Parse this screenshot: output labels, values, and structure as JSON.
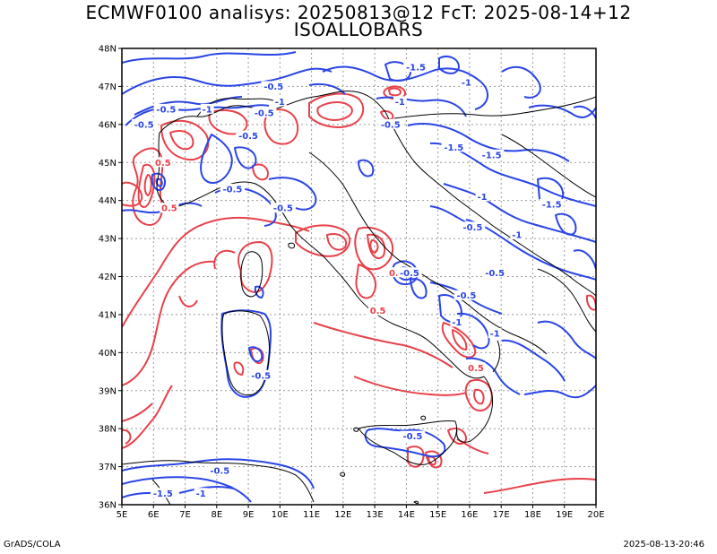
{
  "header": {
    "line1": "ECMWF0100 analisys: 20250813@12 FcT: 2025-08-14+12",
    "line2": "ISOALLOBARS"
  },
  "footer": {
    "left": "GrADS/COLA",
    "right": "2025-08-13-20:46"
  },
  "map": {
    "lon_range": [
      5,
      20
    ],
    "lat_range": [
      36,
      48
    ],
    "lon_ticks": [
      "5E",
      "6E",
      "7E",
      "8E",
      "9E",
      "10E",
      "11E",
      "12E",
      "13E",
      "14E",
      "15E",
      "16E",
      "17E",
      "18E",
      "19E",
      "20E"
    ],
    "lat_ticks": [
      "36N",
      "37N",
      "38N",
      "39N",
      "40N",
      "41N",
      "42N",
      "43N",
      "44N",
      "45N",
      "46N",
      "47N",
      "48N"
    ],
    "grid": true,
    "colors": {
      "positive": "#e8414a",
      "negative": "#2a45e6",
      "coast": "#000000",
      "grid": "#9a9a9a"
    }
  },
  "contour_labels": [
    {
      "text": "-0.5",
      "lon": 5.7,
      "lat": 46.0,
      "sign": "neg"
    },
    {
      "text": "-0.5",
      "lon": 6.4,
      "lat": 46.4,
      "sign": "neg"
    },
    {
      "text": "-1",
      "lon": 7.7,
      "lat": 46.4,
      "sign": "neg"
    },
    {
      "text": "-0.5",
      "lon": 9.5,
      "lat": 46.3,
      "sign": "neg"
    },
    {
      "text": "-0.5",
      "lon": 9.8,
      "lat": 47.0,
      "sign": "neg"
    },
    {
      "text": "-1",
      "lon": 10.0,
      "lat": 46.6,
      "sign": "neg"
    },
    {
      "text": "-0.5",
      "lon": 9.0,
      "lat": 45.7,
      "sign": "neg"
    },
    {
      "text": "0.5",
      "lon": 6.3,
      "lat": 45.0,
      "sign": "pos"
    },
    {
      "text": "-0.5",
      "lon": 8.5,
      "lat": 44.3,
      "sign": "neg"
    },
    {
      "text": "-0.5",
      "lon": 10.1,
      "lat": 43.8,
      "sign": "neg"
    },
    {
      "text": "0.5",
      "lon": 6.5,
      "lat": 43.8,
      "sign": "pos"
    },
    {
      "text": "-0.5",
      "lon": 13.5,
      "lat": 46.0,
      "sign": "neg"
    },
    {
      "text": "-1",
      "lon": 13.8,
      "lat": 46.6,
      "sign": "neg"
    },
    {
      "text": "-1.5",
      "lon": 14.3,
      "lat": 47.5,
      "sign": "neg"
    },
    {
      "text": "-1",
      "lon": 15.9,
      "lat": 47.1,
      "sign": "neg"
    },
    {
      "text": "-1.5",
      "lon": 15.5,
      "lat": 45.4,
      "sign": "neg"
    },
    {
      "text": "-1.5",
      "lon": 16.7,
      "lat": 45.2,
      "sign": "neg"
    },
    {
      "text": "-1",
      "lon": 16.4,
      "lat": 44.1,
      "sign": "neg"
    },
    {
      "text": "-1.5",
      "lon": 18.6,
      "lat": 43.9,
      "sign": "neg"
    },
    {
      "text": "-0.5",
      "lon": 16.1,
      "lat": 43.3,
      "sign": "neg"
    },
    {
      "text": "-1",
      "lon": 17.5,
      "lat": 43.1,
      "sign": "neg"
    },
    {
      "text": "-0.5",
      "lon": 16.8,
      "lat": 42.1,
      "sign": "neg"
    },
    {
      "text": "0.5",
      "lon": 13.7,
      "lat": 42.1,
      "sign": "pos"
    },
    {
      "text": "-0.5",
      "lon": 14.1,
      "lat": 42.1,
      "sign": "neg"
    },
    {
      "text": "-0.5",
      "lon": 15.9,
      "lat": 41.5,
      "sign": "neg"
    },
    {
      "text": "-1",
      "lon": 15.6,
      "lat": 40.8,
      "sign": "neg"
    },
    {
      "text": "0.5",
      "lon": 13.1,
      "lat": 41.1,
      "sign": "pos"
    },
    {
      "text": "-1",
      "lon": 16.8,
      "lat": 40.5,
      "sign": "neg"
    },
    {
      "text": "-0.5",
      "lon": 9.4,
      "lat": 39.4,
      "sign": "neg"
    },
    {
      "text": "-0.5",
      "lon": 14.2,
      "lat": 37.8,
      "sign": "neg"
    },
    {
      "text": "-0.5",
      "lon": 8.1,
      "lat": 36.9,
      "sign": "neg"
    },
    {
      "text": "-1",
      "lon": 7.5,
      "lat": 36.3,
      "sign": "neg"
    },
    {
      "text": "-1.5",
      "lon": 6.3,
      "lat": 36.3,
      "sign": "neg"
    },
    {
      "text": "0.5",
      "lon": 16.2,
      "lat": 39.6,
      "sign": "pos"
    }
  ]
}
